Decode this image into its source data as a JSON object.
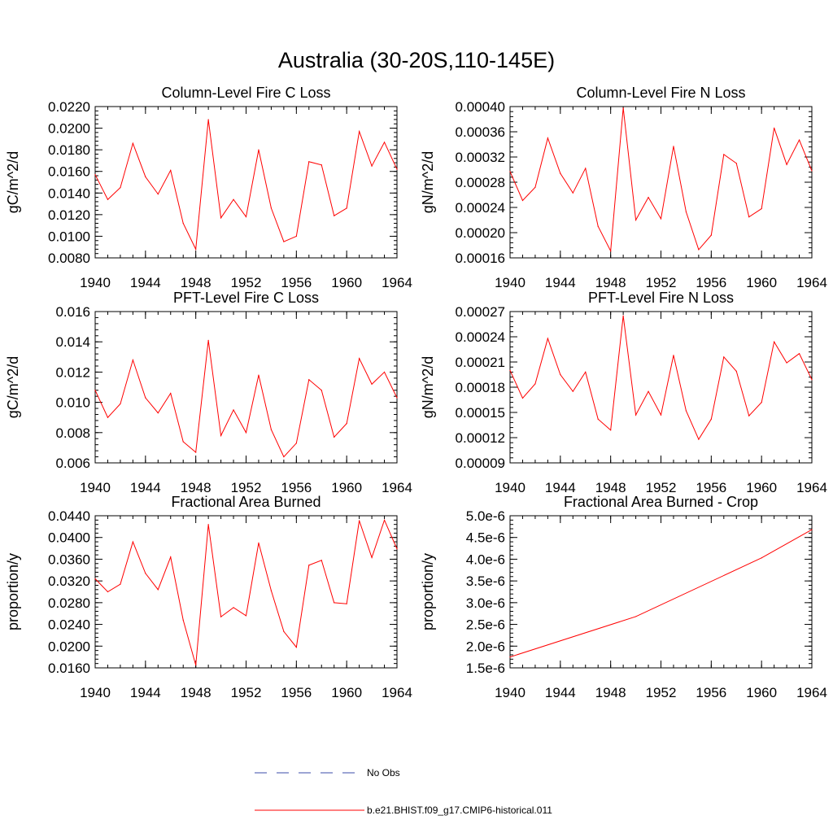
{
  "figure": {
    "title": "Australia (30-20S,110-145E)",
    "series_color": "#ff0000",
    "obs_color": "#3b4ba8"
  },
  "legend": {
    "items": [
      {
        "label": "No Obs",
        "style": "dashed"
      },
      {
        "label": "b.e21.BHIST.f09_g17.CMIP6-historical.011",
        "style": "solid"
      }
    ]
  },
  "chart_data": [
    {
      "type": "line",
      "title": "Column-Level Fire C Loss",
      "xlabel": "",
      "ylabel": "gC/m^2/d",
      "xlim": [
        1940,
        1964
      ],
      "ylim": [
        0.008,
        0.022
      ],
      "xticks": [
        "1940",
        "1944",
        "1948",
        "1952",
        "1956",
        "1960",
        "1964"
      ],
      "yticks": [
        "0.0080",
        "0.0100",
        "0.0120",
        "0.0140",
        "0.0160",
        "0.0180",
        "0.0200",
        "0.0220"
      ],
      "x": [
        1940,
        1941,
        1942,
        1943,
        1944,
        1945,
        1946,
        1947,
        1948,
        1949,
        1950,
        1951,
        1952,
        1953,
        1954,
        1955,
        1956,
        1957,
        1958,
        1959,
        1960,
        1961,
        1962,
        1963,
        1964
      ],
      "series": [
        {
          "name": "b.e21.BHIST.f09_g17.CMIP6-historical.011",
          "values": [
            0.0157,
            0.0134,
            0.0145,
            0.0186,
            0.0155,
            0.0139,
            0.0161,
            0.0112,
            0.0088,
            0.0208,
            0.0117,
            0.0134,
            0.0118,
            0.018,
            0.0126,
            0.0095,
            0.01,
            0.0169,
            0.0166,
            0.0119,
            0.0126,
            0.0197,
            0.0165,
            0.0187,
            0.0162
          ]
        }
      ]
    },
    {
      "type": "line",
      "title": "Column-Level Fire N Loss",
      "xlabel": "",
      "ylabel": "gN/m^2/d",
      "xlim": [
        1940,
        1964
      ],
      "ylim": [
        0.00016,
        0.0004
      ],
      "xticks": [
        "1940",
        "1944",
        "1948",
        "1952",
        "1956",
        "1960",
        "1964"
      ],
      "yticks": [
        "0.00016",
        "0.00020",
        "0.00024",
        "0.00028",
        "0.00032",
        "0.00036",
        "0.00040"
      ],
      "x": [
        1940,
        1941,
        1942,
        1943,
        1944,
        1945,
        1946,
        1947,
        1948,
        1949,
        1950,
        1951,
        1952,
        1953,
        1954,
        1955,
        1956,
        1957,
        1958,
        1959,
        1960,
        1961,
        1962,
        1963,
        1964
      ],
      "series": [
        {
          "name": "b.e21.BHIST.f09_g17.CMIP6-historical.011",
          "values": [
            0.000297,
            0.000251,
            0.000272,
            0.00035,
            0.000294,
            0.000263,
            0.000302,
            0.00021,
            0.000171,
            0.000398,
            0.00022,
            0.000256,
            0.000222,
            0.000337,
            0.000233,
            0.000173,
            0.000196,
            0.000324,
            0.00031,
            0.000225,
            0.000238,
            0.000366,
            0.000308,
            0.000347,
            0.000298
          ]
        }
      ]
    },
    {
      "type": "line",
      "title": "PFT-Level Fire C Loss",
      "xlabel": "",
      "ylabel": "gC/m^2/d",
      "xlim": [
        1940,
        1964
      ],
      "ylim": [
        0.006,
        0.016
      ],
      "xticks": [
        "1940",
        "1944",
        "1948",
        "1952",
        "1956",
        "1960",
        "1964"
      ],
      "yticks": [
        "0.006",
        "0.008",
        "0.010",
        "0.012",
        "0.014",
        "0.016"
      ],
      "x": [
        1940,
        1941,
        1942,
        1943,
        1944,
        1945,
        1946,
        1947,
        1948,
        1949,
        1950,
        1951,
        1952,
        1953,
        1954,
        1955,
        1956,
        1957,
        1958,
        1959,
        1960,
        1961,
        1962,
        1963,
        1964
      ],
      "series": [
        {
          "name": "b.e21.BHIST.f09_g17.CMIP6-historical.011",
          "values": [
            0.0108,
            0.009,
            0.0099,
            0.0128,
            0.0103,
            0.0093,
            0.0106,
            0.0074,
            0.0067,
            0.0141,
            0.0078,
            0.0095,
            0.008,
            0.0118,
            0.0082,
            0.0064,
            0.0073,
            0.0115,
            0.0108,
            0.0077,
            0.0086,
            0.0129,
            0.0112,
            0.012,
            0.0103
          ]
        }
      ]
    },
    {
      "type": "line",
      "title": "PFT-Level Fire N Loss",
      "xlabel": "",
      "ylabel": "gN/m^2/d",
      "xlim": [
        1940,
        1964
      ],
      "ylim": [
        9e-05,
        0.00027
      ],
      "xticks": [
        "1940",
        "1944",
        "1948",
        "1952",
        "1956",
        "1960",
        "1964"
      ],
      "yticks": [
        "0.00009",
        "0.00012",
        "0.00015",
        "0.00018",
        "0.00021",
        "0.00024",
        "0.00027"
      ],
      "x": [
        1940,
        1941,
        1942,
        1943,
        1944,
        1945,
        1946,
        1947,
        1948,
        1949,
        1950,
        1951,
        1952,
        1953,
        1954,
        1955,
        1956,
        1957,
        1958,
        1959,
        1960,
        1961,
        1962,
        1963,
        1964
      ],
      "series": [
        {
          "name": "b.e21.BHIST.f09_g17.CMIP6-historical.011",
          "values": [
            0.0002,
            0.000167,
            0.000184,
            0.000238,
            0.000195,
            0.000175,
            0.000198,
            0.000142,
            0.000129,
            0.000265,
            0.000147,
            0.000175,
            0.000147,
            0.000218,
            0.000152,
            0.000118,
            0.000142,
            0.000216,
            0.000199,
            0.000146,
            0.000162,
            0.000234,
            0.000209,
            0.00022,
            0.000189
          ]
        }
      ]
    },
    {
      "type": "line",
      "title": "Fractional Area Burned",
      "xlabel": "",
      "ylabel": "proportion/y",
      "xlim": [
        1940,
        1964
      ],
      "ylim": [
        0.016,
        0.044
      ],
      "xticks": [
        "1940",
        "1944",
        "1948",
        "1952",
        "1956",
        "1960",
        "1964"
      ],
      "yticks": [
        "0.0160",
        "0.0200",
        "0.0240",
        "0.0280",
        "0.0320",
        "0.0360",
        "0.0400",
        "0.0440"
      ],
      "x": [
        1940,
        1941,
        1942,
        1943,
        1944,
        1945,
        1946,
        1947,
        1948,
        1949,
        1950,
        1951,
        1952,
        1953,
        1954,
        1955,
        1956,
        1957,
        1958,
        1959,
        1960,
        1961,
        1962,
        1963,
        1964
      ],
      "series": [
        {
          "name": "b.e21.BHIST.f09_g17.CMIP6-historical.011",
          "values": [
            0.0324,
            0.03,
            0.0314,
            0.0392,
            0.0334,
            0.0304,
            0.0364,
            0.0248,
            0.0165,
            0.0424,
            0.0254,
            0.0271,
            0.0256,
            0.039,
            0.0302,
            0.0227,
            0.0198,
            0.0349,
            0.0358,
            0.028,
            0.0278,
            0.0431,
            0.0363,
            0.0432,
            0.0379
          ]
        }
      ]
    },
    {
      "type": "line",
      "title": "Fractional Area Burned - Crop",
      "xlabel": "",
      "ylabel": "proportion/y",
      "xlim": [
        1940,
        1964
      ],
      "ylim": [
        1.5e-06,
        5e-06
      ],
      "xticks": [
        "1940",
        "1944",
        "1948",
        "1952",
        "1956",
        "1960",
        "1964"
      ],
      "yticks": [
        "1.5e-6",
        "2.0e-6",
        "2.5e-6",
        "3.0e-6",
        "3.5e-6",
        "4.0e-6",
        "4.5e-6",
        "5.0e-6"
      ],
      "x": [
        1940,
        1950,
        1960,
        1964
      ],
      "series": [
        {
          "name": "b.e21.BHIST.f09_g17.CMIP6-historical.011",
          "values": [
            1.75e-06,
            2.68e-06,
            4.03e-06,
            4.68e-06
          ]
        }
      ]
    }
  ]
}
